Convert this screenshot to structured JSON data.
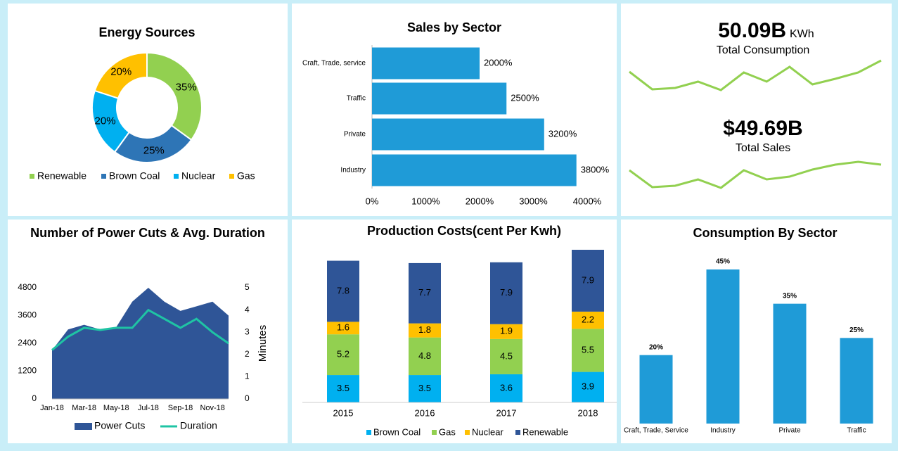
{
  "chart_data": [
    {
      "type": "donut",
      "title": "Energy Sources",
      "categories": [
        "Renewable",
        "Brown Coal",
        "Nuclear",
        "Gas"
      ],
      "values": [
        35,
        25,
        20,
        20
      ],
      "value_labels": [
        "35%",
        "25%",
        "20%",
        "20%"
      ],
      "colors": [
        "#92d050",
        "#2e75b6",
        "#00b0f0",
        "#ffc000"
      ],
      "legend": "bottom"
    },
    {
      "type": "hbar",
      "title": "Sales by Sector",
      "categories": [
        "Craft, Trade, service",
        "Traffic",
        "Private",
        "Industry"
      ],
      "values": [
        2000,
        2500,
        3200,
        3800
      ],
      "value_labels": [
        "2000%",
        "2500%",
        "3200%",
        "3800%"
      ],
      "color": "#1f9bd7",
      "xlim": [
        0,
        4000
      ],
      "xticks": [
        {
          "value": 0,
          "label": "0%"
        },
        {
          "value": 1000,
          "label": "1000%"
        },
        {
          "value": 2000,
          "label": "2000%"
        },
        {
          "value": 3000,
          "label": "3000%"
        },
        {
          "value": 4000,
          "label": "4000%"
        }
      ]
    },
    {
      "type": "line",
      "values": [
        28,
        3,
        5,
        14,
        2,
        27,
        14,
        35,
        10,
        18,
        27,
        44
      ],
      "color": "#92d050"
    },
    {
      "type": "line",
      "values": [
        28,
        4,
        6,
        15,
        3,
        28,
        15,
        19,
        29,
        36,
        40,
        36
      ],
      "color": "#92d050"
    },
    {
      "type": "combo",
      "title": "Number of Power Cuts & Avg. Duration",
      "categories": [
        "Jan-18",
        null,
        "Mar-18",
        null,
        "May-18",
        null,
        "Jul-18",
        null,
        "Sep-18",
        null,
        "Nov-18",
        null
      ],
      "series": [
        {
          "name": "Power Cuts",
          "kind": "area",
          "color": "#2f5597",
          "values": [
            2100,
            3000,
            3200,
            3000,
            3100,
            4200,
            4800,
            4200,
            3800,
            4000,
            4200,
            3600
          ]
        },
        {
          "name": "Duration",
          "kind": "line",
          "axis": "y2",
          "color": "#1fc4a4",
          "values": [
            2.2,
            2.8,
            3.2,
            3.1,
            3.2,
            3.2,
            4.0,
            3.6,
            3.2,
            3.6,
            3.0,
            2.5
          ]
        }
      ],
      "ylim": [
        0,
        4800
      ],
      "yticks": [
        0,
        1200,
        2400,
        3600,
        4800
      ],
      "y2lim": [
        0,
        5
      ],
      "y2ticks": [
        0,
        1,
        2,
        3,
        4,
        5
      ],
      "y2label": "Minutes",
      "legend": "bottom"
    },
    {
      "type": "stacked",
      "title": "Production Costs(cent Per Kwh)",
      "categories": [
        "2015",
        "2016",
        "2017",
        "2018"
      ],
      "series": [
        {
          "name": "Brown Coal",
          "color": "#00b0f0",
          "values": [
            3.5,
            3.5,
            3.6,
            3.9
          ]
        },
        {
          "name": "Gas",
          "color": "#92d050",
          "values": [
            5.2,
            4.8,
            4.5,
            5.5
          ]
        },
        {
          "name": "Nuclear",
          "color": "#ffc000",
          "values": [
            1.6,
            1.8,
            1.9,
            2.2
          ]
        },
        {
          "name": "Renewable",
          "color": "#2f5597",
          "values": [
            7.8,
            7.7,
            7.9,
            7.9
          ]
        }
      ],
      "legend": "bottom"
    },
    {
      "type": "bar",
      "title": "Consumption By Sector",
      "categories": [
        "Craft, Trade, Service",
        "Industry",
        "Private",
        "Traffic"
      ],
      "values": [
        20,
        45,
        35,
        25
      ],
      "value_labels": [
        "20%",
        "45%",
        "35%",
        "25%"
      ],
      "color": "#1f9bd7"
    }
  ],
  "kpis": [
    {
      "value": "50.09B",
      "unit": "KWh",
      "label": "Total Consumption"
    },
    {
      "value": "$49.69B",
      "label": "Total Sales"
    }
  ]
}
